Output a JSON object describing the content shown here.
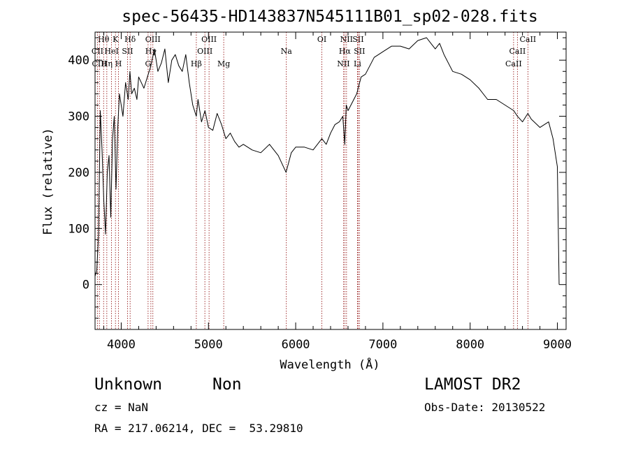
{
  "chart_data": {
    "type": "line",
    "title": "spec-56435-HD143837N545111B01_sp02-028.fits",
    "xlabel": "Wavelength (Å)",
    "ylabel": "Flux (relative)",
    "xlim": [
      3700,
      9100
    ],
    "ylim": [
      -80,
      450
    ],
    "xticks": [
      4000,
      5000,
      6000,
      7000,
      8000,
      9000
    ],
    "yticks": [
      0,
      100,
      200,
      300,
      400
    ],
    "series": [
      {
        "x": [
          3700,
          3720,
          3740,
          3760,
          3780,
          3800,
          3820,
          3840,
          3860,
          3880,
          3900,
          3920,
          3940,
          3960,
          3980,
          4000,
          4020,
          4050,
          4080,
          4100,
          4120,
          4150,
          4180,
          4200,
          4230,
          4260,
          4300,
          4340,
          4380,
          4420,
          4460,
          4500,
          4540,
          4580,
          4620,
          4660,
          4700,
          4740,
          4780,
          4820,
          4861,
          4880,
          4920,
          4960,
          5000,
          5050,
          5100,
          5150,
          5200,
          5250,
          5300,
          5350,
          5400,
          5500,
          5600,
          5700,
          5800,
          5890,
          5950,
          6000,
          6100,
          6200,
          6300,
          6350,
          6400,
          6450,
          6500,
          6540,
          6563,
          6580,
          6600,
          6650,
          6700,
          6750,
          6800,
          6850,
          6900,
          6950,
          7000,
          7100,
          7200,
          7300,
          7400,
          7500,
          7550,
          7600,
          7650,
          7700,
          7800,
          7900,
          8000,
          8100,
          8200,
          8300,
          8400,
          8500,
          8542,
          8600,
          8662,
          8700,
          8800,
          8900,
          8950,
          9000,
          9020
        ],
        "y": [
          15,
          25,
          90,
          310,
          240,
          150,
          90,
          200,
          230,
          120,
          260,
          300,
          170,
          280,
          340,
          320,
          300,
          360,
          330,
          380,
          340,
          350,
          330,
          370,
          360,
          350,
          370,
          390,
          420,
          380,
          395,
          420,
          360,
          400,
          410,
          390,
          380,
          410,
          360,
          320,
          300,
          330,
          290,
          310,
          280,
          275,
          305,
          285,
          260,
          270,
          255,
          245,
          250,
          240,
          235,
          250,
          230,
          200,
          235,
          245,
          245,
          240,
          260,
          250,
          270,
          285,
          290,
          300,
          250,
          320,
          310,
          325,
          340,
          370,
          375,
          390,
          405,
          410,
          415,
          425,
          425,
          420,
          435,
          440,
          430,
          420,
          430,
          410,
          380,
          375,
          365,
          350,
          330,
          330,
          320,
          310,
          300,
          290,
          305,
          295,
          280,
          290,
          260,
          210,
          0
        ]
      }
    ],
    "line_marks": [
      {
        "label": "Hθ",
        "x": 3798,
        "row": 1
      },
      {
        "label": "CII",
        "x": 3727,
        "row": 2
      },
      {
        "label": "CIII",
        "x": 3750,
        "row": 3
      },
      {
        "label": "K",
        "x": 3934,
        "row": 1
      },
      {
        "label": "HeI",
        "x": 3889,
        "row": 2
      },
      {
        "label": "Hη",
        "x": 3835,
        "row": 3
      },
      {
        "label": "SII",
        "x": 4072,
        "row": 2
      },
      {
        "label": "H",
        "x": 3969,
        "row": 3
      },
      {
        "label": "Hδ",
        "x": 4102,
        "row": 1
      },
      {
        "label": "OIII",
        "x": 4363,
        "row": 1
      },
      {
        "label": "Hγ",
        "x": 4340,
        "row": 2
      },
      {
        "label": "G",
        "x": 4308,
        "row": 3
      },
      {
        "label": "Hβ",
        "x": 4861,
        "row": 3
      },
      {
        "label": "OIII",
        "x": 5007,
        "row": 1
      },
      {
        "label": "OIII",
        "x": 4959,
        "row": 2
      },
      {
        "label": "Mg",
        "x": 5175,
        "row": 3
      },
      {
        "label": "Na",
        "x": 5893,
        "row": 2
      },
      {
        "label": "OI",
        "x": 6300,
        "row": 1
      },
      {
        "label": "NII",
        "x": 6583,
        "row": 1
      },
      {
        "label": "SII",
        "x": 6716,
        "row": 1
      },
      {
        "label": "Hα",
        "x": 6563,
        "row": 2
      },
      {
        "label": "SII",
        "x": 6731,
        "row": 2
      },
      {
        "label": "NII",
        "x": 6548,
        "row": 3
      },
      {
        "label": "Li",
        "x": 6708,
        "row": 3
      },
      {
        "label": "CaII",
        "x": 8662,
        "row": 1
      },
      {
        "label": "CaII",
        "x": 8542,
        "row": 2
      },
      {
        "label": "CaII",
        "x": 8498,
        "row": 3
      }
    ],
    "grid": false,
    "colors": {
      "spectrum": "#000000",
      "line_marks": "#8b0000",
      "axes": "#000000"
    }
  },
  "info": {
    "class": "Unknown",
    "subclass": "Non",
    "survey": "LAMOST DR2",
    "cz": "cz = NaN",
    "obs_date": "Obs-Date: 20130522",
    "coords": "RA = 217.06214, DEC =  53.29810"
  }
}
